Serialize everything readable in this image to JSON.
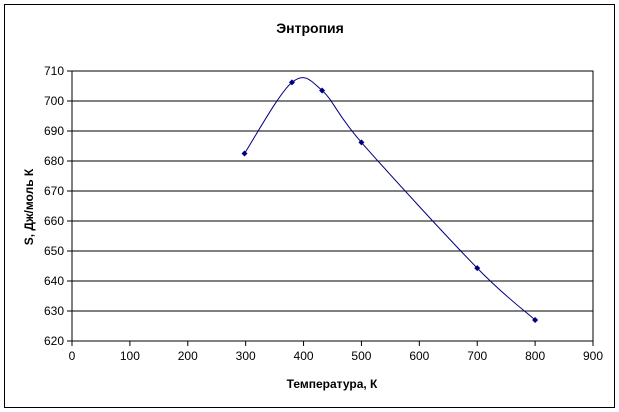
{
  "chart_data": {
    "type": "scatter",
    "title": "Энтропия",
    "xlabel": "Температура, К",
    "ylabel": "S, Дж/моль К",
    "xlim": [
      0,
      900
    ],
    "ylim": [
      620,
      710
    ],
    "xticks": [
      0,
      100,
      200,
      300,
      400,
      500,
      600,
      700,
      800,
      900
    ],
    "yticks": [
      620,
      630,
      640,
      650,
      660,
      670,
      680,
      690,
      700,
      710
    ],
    "grid": "horizontal",
    "smooth_line": true,
    "colors": {
      "line": "#00007f",
      "marker": "#00007f",
      "grid": "#000000"
    },
    "series": [
      {
        "points": [
          {
            "x": 298,
            "y": 682.5
          },
          {
            "x": 380,
            "y": 706.2
          },
          {
            "x": 432,
            "y": 703.5
          },
          {
            "x": 500,
            "y": 686.2
          },
          {
            "x": 700,
            "y": 644.3
          },
          {
            "x": 800,
            "y": 627.0
          }
        ]
      }
    ]
  }
}
